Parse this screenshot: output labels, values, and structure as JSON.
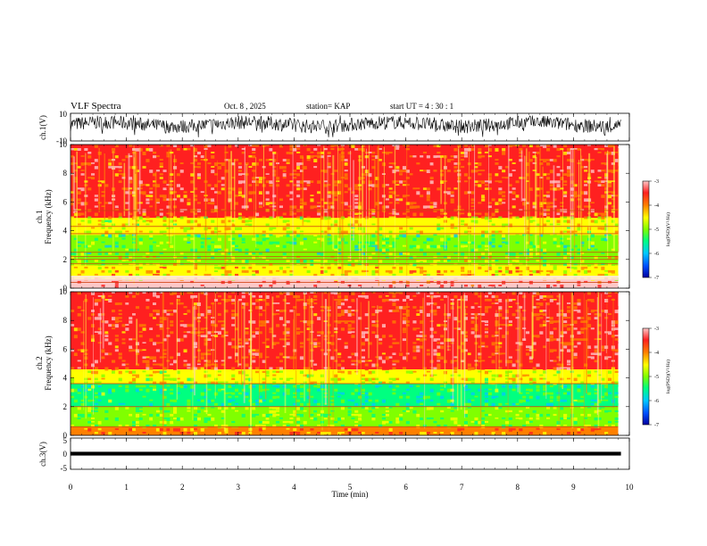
{
  "header": {
    "title": "VLF Spectra",
    "date": "Oct. 8 , 2025",
    "station": "station= KAP",
    "start_ut": "start UT =  4 : 30 : 1"
  },
  "colors": {
    "background": "#ffffff",
    "axis": "#000000",
    "colormap": [
      "#0000a0",
      "#0050ff",
      "#00c8ff",
      "#00ff80",
      "#80ff00",
      "#ffff00",
      "#ff8000",
      "#ff2020",
      "#ffc8c8"
    ]
  },
  "chart_data": [
    {
      "type": "line",
      "id": "ch1_waveform",
      "ylabel": "ch.1(V)",
      "ylim": [
        -10,
        10
      ],
      "yticks": [
        "10",
        "-10"
      ],
      "xlim": [
        0,
        10
      ],
      "description_values": {
        "mean_v": 2,
        "amplitude_v": 5
      }
    },
    {
      "type": "heatmap",
      "id": "ch1_spectrogram",
      "ylabel": "ch.1",
      "ylabel2": "Frequency (kHz)",
      "ylim": [
        0,
        10
      ],
      "yticks": [
        "0",
        "2",
        "4",
        "6",
        "8",
        "10"
      ],
      "xlim": [
        0,
        9.8
      ],
      "colorbar": {
        "label": "log(PSD)(V²/Hz)",
        "range": [
          -7,
          -3
        ],
        "ticks": [
          "-3",
          "-4",
          "-5",
          "-6",
          "-7"
        ]
      },
      "bands_khz": [
        {
          "from": 0.0,
          "to": 0.6,
          "level": -3.1
        },
        {
          "from": 0.6,
          "to": 1.6,
          "level": -4.3
        },
        {
          "from": 1.6,
          "to": 2.3,
          "level": -4.8
        },
        {
          "from": 2.3,
          "to": 3.7,
          "level": -5.2
        },
        {
          "from": 3.7,
          "to": 4.9,
          "level": -4.6
        },
        {
          "from": 4.9,
          "to": 10.0,
          "level": -3.7
        }
      ],
      "lines_khz": [
        0.4,
        0.6,
        1.7,
        2.0,
        2.2,
        2.5,
        3.8,
        4.3,
        5.4
      ]
    },
    {
      "type": "heatmap",
      "id": "ch2_spectrogram",
      "ylabel": "ch.2",
      "ylabel2": "Frequency (kHz)",
      "ylim": [
        0,
        10
      ],
      "yticks": [
        "0",
        "2",
        "4",
        "6",
        "8",
        "10"
      ],
      "xlim": [
        0,
        9.8
      ],
      "colorbar": {
        "label": "log(PSD)(V²/Hz)",
        "range": [
          -7,
          -3
        ],
        "ticks": [
          "-3",
          "-4",
          "-5",
          "-6",
          "-7"
        ]
      },
      "bands_khz": [
        {
          "from": 0.0,
          "to": 0.6,
          "level": -4.0
        },
        {
          "from": 0.6,
          "to": 2.0,
          "level": -5.0
        },
        {
          "from": 2.0,
          "to": 3.6,
          "level": -5.4
        },
        {
          "from": 3.6,
          "to": 4.6,
          "level": -4.6
        },
        {
          "from": 4.6,
          "to": 10.0,
          "level": -3.6
        }
      ],
      "lines_khz": [
        0.6,
        2.0,
        3.6
      ]
    },
    {
      "type": "line",
      "id": "ch3_waveform",
      "ylabel": "ch.3(V)",
      "ylim": [
        -5,
        5
      ],
      "yticks": [
        "5",
        "0",
        "-5"
      ],
      "xlim": [
        0,
        10
      ],
      "description_values": {
        "mean_v": 0,
        "amplitude_v": 0.6
      }
    }
  ],
  "xaxis": {
    "label": "Time (min)",
    "range": [
      0,
      10
    ],
    "ticks": [
      "0",
      "1",
      "2",
      "3",
      "4",
      "5",
      "6",
      "7",
      "8",
      "9",
      "10"
    ]
  }
}
